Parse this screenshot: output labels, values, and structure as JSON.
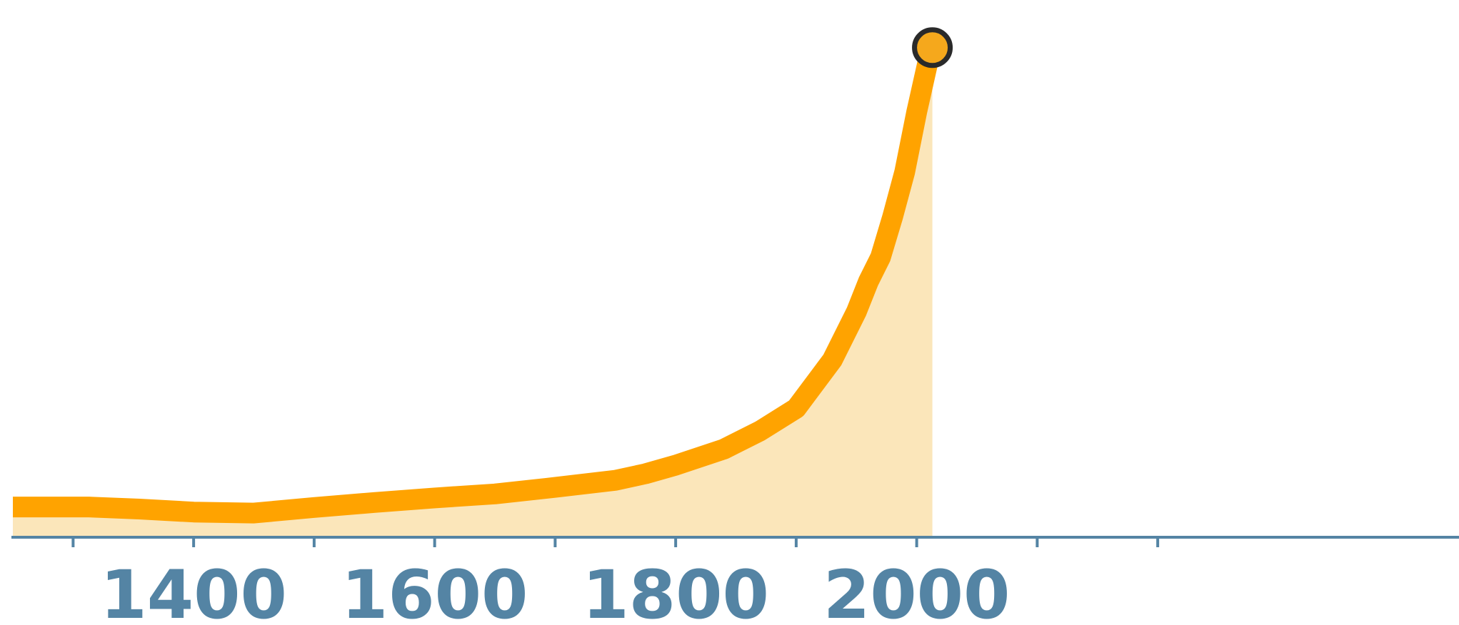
{
  "colors": {
    "line": "#FFA300",
    "area": "#FBE6BA",
    "axis": "#5484A4",
    "marker_fill": "#F5A81C",
    "marker_stroke": "#2A2A2A",
    "background": "#FFFFFF"
  },
  "chart_data": {
    "type": "area",
    "title": "",
    "xlabel": "",
    "ylabel": "",
    "grid": false,
    "legend": "none",
    "xlim": [
      1250,
      2450
    ],
    "ylim": [
      0,
      100
    ],
    "x_ticks": [
      1300,
      1400,
      1500,
      1600,
      1700,
      1800,
      1900,
      2000,
      2100,
      2200
    ],
    "x_tick_labels": [
      {
        "x": 1400,
        "label": "1400"
      },
      {
        "x": 1600,
        "label": "1600"
      },
      {
        "x": 1800,
        "label": "1800"
      },
      {
        "x": 2000,
        "label": "2000"
      }
    ],
    "series": [
      {
        "x": [
          1250,
          1313,
          1355,
          1400,
          1450,
          1500,
          1550,
          1600,
          1650,
          1700,
          1750,
          1775,
          1800,
          1840,
          1870,
          1900,
          1930,
          1950,
          1960,
          1970,
          1980,
          1990,
          2000,
          2010,
          2013
        ],
        "y": [
          6.0,
          6.0,
          5.6,
          5.0,
          4.8,
          5.9,
          6.9,
          7.8,
          8.6,
          9.9,
          11.3,
          12.6,
          14.3,
          17.5,
          21.1,
          25.6,
          35.2,
          44.8,
          50.8,
          55.6,
          63.6,
          72.5,
          84.4,
          95.1,
          97.2
        ]
      }
    ],
    "end_marker": {
      "x": 2013,
      "y": 97.2
    }
  }
}
